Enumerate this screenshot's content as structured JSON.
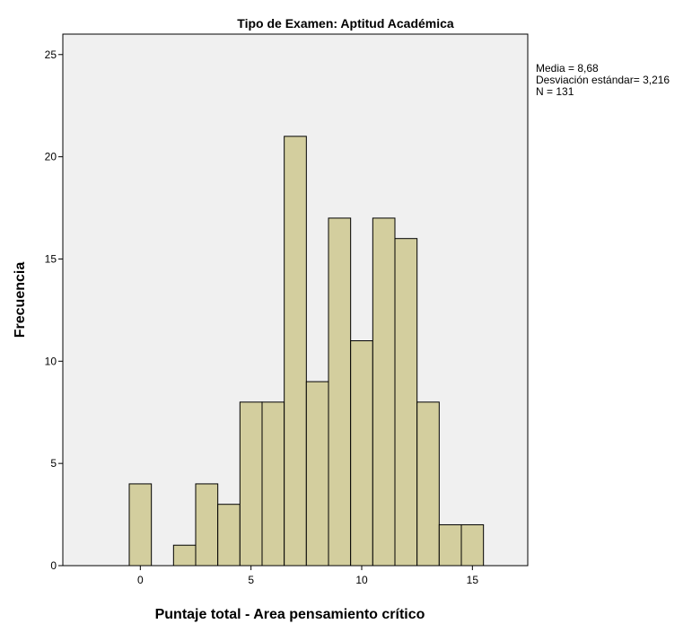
{
  "chart_data": {
    "type": "bar",
    "title": "Tipo de Examen: Aptitud Académica",
    "xlabel": "Puntaje total - Area pensamiento crítico",
    "ylabel": "Frecuencia",
    "x": [
      0,
      2,
      3,
      4,
      5,
      6,
      7,
      8,
      9,
      10,
      11,
      12,
      13,
      14,
      15
    ],
    "values": [
      4,
      1,
      4,
      3,
      8,
      8,
      21,
      9,
      17,
      11,
      17,
      16,
      8,
      2,
      2
    ],
    "xlim": [
      -3.5,
      17.5
    ],
    "ylim": [
      0,
      26
    ],
    "xticks": [
      "0",
      "5",
      "10",
      "15"
    ],
    "yticks": [
      "0",
      "5",
      "10",
      "15",
      "20",
      "25"
    ],
    "grid": false,
    "colors": {
      "bar_fill": "#D3CE9E",
      "bar_stroke": "#000000",
      "plot_background": "#F0F0F0"
    },
    "stats": [
      "Media = 8,68",
      "Desviación estándar= 3,216",
      "N = 131"
    ]
  }
}
